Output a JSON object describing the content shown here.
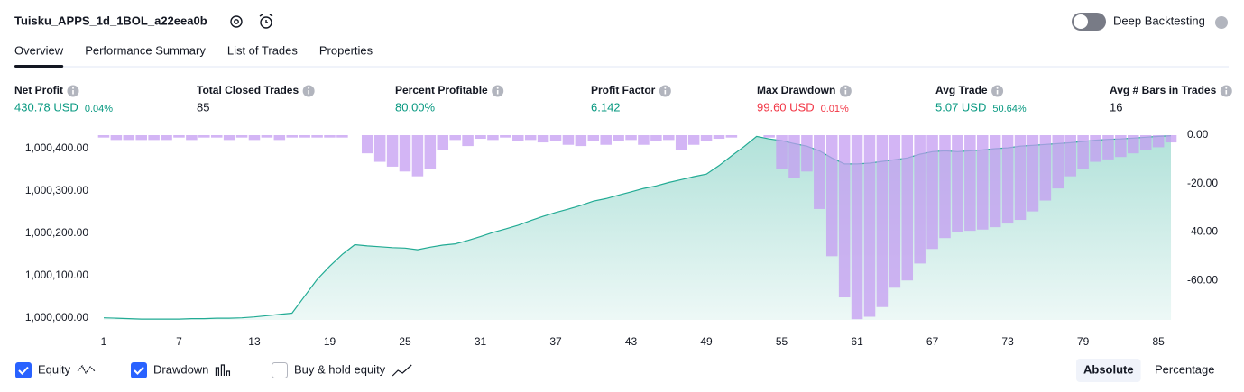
{
  "header": {
    "title": "Tuisku_APPS_1d_1BOL_a22eea0b",
    "toggle_label": "Deep Backtesting"
  },
  "tabs": [
    "Overview",
    "Performance Summary",
    "List of Trades",
    "Properties"
  ],
  "metrics": [
    {
      "label": "Net Profit",
      "value": "430.78 USD",
      "percent": "0.04%",
      "color": "#089981"
    },
    {
      "label": "Total Closed Trades",
      "value": "85",
      "color": "#131722"
    },
    {
      "label": "Percent Profitable",
      "value": "80.00%",
      "color": "#089981"
    },
    {
      "label": "Profit Factor",
      "value": "6.142",
      "color": "#089981"
    },
    {
      "label": "Max Drawdown",
      "value": "99.60 USD",
      "percent": "0.01%",
      "color": "#f23645"
    },
    {
      "label": "Avg Trade",
      "value": "5.07 USD",
      "percent": "50.64%",
      "color": "#089981"
    },
    {
      "label": "Avg # Bars in Trades",
      "value": "16",
      "color": "#131722"
    }
  ],
  "chart_data": {
    "type": "combo",
    "x": [
      1,
      2,
      3,
      4,
      5,
      6,
      7,
      8,
      9,
      10,
      11,
      12,
      13,
      14,
      15,
      16,
      17,
      18,
      19,
      20,
      21,
      22,
      23,
      24,
      25,
      26,
      27,
      28,
      29,
      30,
      31,
      32,
      33,
      34,
      35,
      36,
      37,
      38,
      39,
      40,
      41,
      42,
      43,
      44,
      45,
      46,
      47,
      48,
      49,
      50,
      51,
      52,
      53,
      54,
      55,
      56,
      57,
      58,
      59,
      60,
      61,
      62,
      63,
      64,
      65,
      66,
      67,
      68,
      69,
      70,
      71,
      72,
      73,
      74,
      75,
      76,
      77,
      78,
      79,
      80,
      81,
      82,
      83,
      84,
      85,
      86
    ],
    "xlim": [
      0.5,
      86.5
    ],
    "xticks": [
      1,
      7,
      13,
      19,
      25,
      31,
      37,
      43,
      49,
      55,
      61,
      67,
      73,
      79,
      85
    ],
    "ylim": [
      999995,
      1000432
    ],
    "yticks": [
      {
        "value": 1000000,
        "label": "1,000,000.00"
      },
      {
        "value": 1000100,
        "label": "1,000,100.00"
      },
      {
        "value": 1000200,
        "label": "1,000,200.00"
      },
      {
        "value": 1000300,
        "label": "1,000,300.00"
      },
      {
        "value": 1000400,
        "label": "1,000,400.00"
      }
    ],
    "y2lim": [
      -76.3,
      0
    ],
    "y2ticks": [
      {
        "value": 0,
        "label": "0.00"
      },
      {
        "value": -20,
        "label": "-20.00"
      },
      {
        "value": -40,
        "label": "-40.00"
      },
      {
        "value": -60,
        "label": "-60.00"
      }
    ],
    "series": [
      {
        "name": "Equity",
        "type": "area",
        "color": "#22ab94",
        "values": [
          1000000,
          999999,
          999998,
          999997,
          999997,
          999997,
          999997,
          999998,
          999998,
          999999,
          999999,
          1000000,
          1000002,
          1000005,
          1000008,
          1000011,
          1000051,
          1000091,
          1000122,
          1000150,
          1000173,
          1000170,
          1000168,
          1000166,
          1000165,
          1000161,
          1000167,
          1000172,
          1000175,
          1000183,
          1000192,
          1000202,
          1000210,
          1000219,
          1000230,
          1000240,
          1000249,
          1000257,
          1000266,
          1000276,
          1000282,
          1000290,
          1000298,
          1000306,
          1000312,
          1000320,
          1000327,
          1000334,
          1000340,
          1000360,
          1000383,
          1000405,
          1000429,
          1000423,
          1000419,
          1000412,
          1000406,
          1000395,
          1000378,
          1000364,
          1000364,
          1000366,
          1000370,
          1000374,
          1000378,
          1000387,
          1000393,
          1000395,
          1000393,
          1000395,
          1000397,
          1000400,
          1000402,
          1000406,
          1000408,
          1000410,
          1000412,
          1000414,
          1000417,
          1000420,
          1000422,
          1000423,
          1000425,
          1000427,
          1000429,
          1000430.78
        ]
      },
      {
        "name": "Drawdown",
        "type": "bar",
        "axis": "y2",
        "color": "#c49cf2",
        "values": [
          -1,
          -2,
          -2,
          -2,
          -2,
          -2,
          -1,
          -2,
          -1,
          -1,
          -2,
          -1,
          -2,
          -1,
          -2,
          -1,
          -1,
          -1,
          -1,
          -1,
          0,
          -7.5,
          -11,
          -13,
          -15,
          -17,
          -14,
          -6,
          -2,
          -4.5,
          -1.5,
          -2,
          -1,
          -2.5,
          -2,
          -3,
          -2.5,
          -4,
          -4.5,
          -2.5,
          -4,
          -2.5,
          -2,
          -4,
          -2.5,
          -2,
          -6,
          -4,
          -2.5,
          -1.5,
          -1,
          0,
          0,
          -1,
          -14,
          -17.5,
          -15,
          -30.5,
          -50,
          -67,
          -76,
          -75,
          -71,
          -63,
          -60,
          -53,
          -47,
          -42.5,
          -40,
          -39.5,
          -39,
          -38,
          -36.5,
          -35,
          -31.5,
          -27,
          -22,
          -17,
          -14,
          -11,
          -10,
          -9,
          -7.5,
          -6,
          -5,
          -3
        ]
      }
    ]
  },
  "legend": [
    {
      "label": "Equity",
      "checked": true
    },
    {
      "label": "Drawdown",
      "checked": true
    },
    {
      "label": "Buy & hold equity",
      "checked": false
    }
  ],
  "scale_buttons": [
    "Absolute",
    "Percentage"
  ],
  "active_scale": 0
}
